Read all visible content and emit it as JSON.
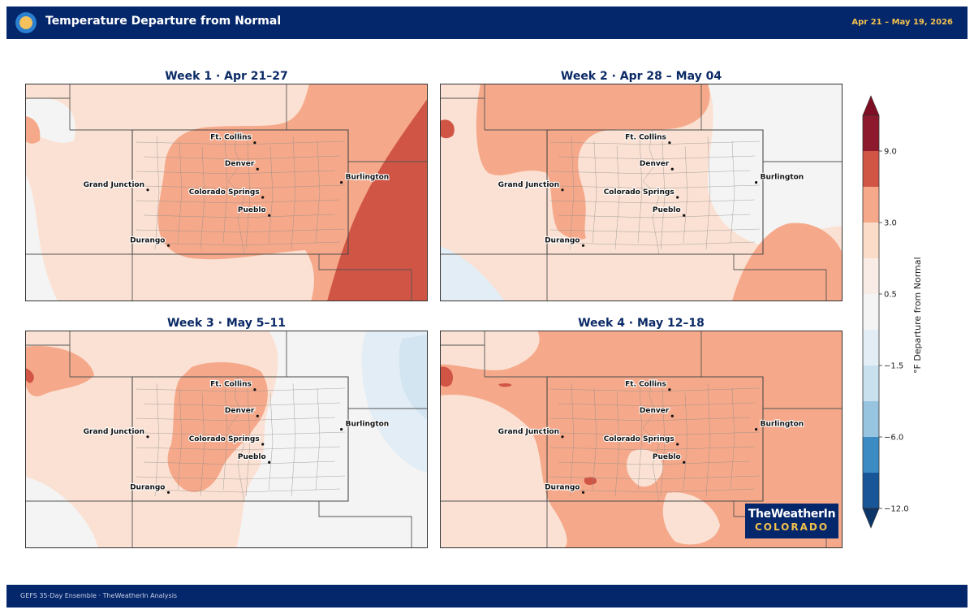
{
  "header": {
    "title": "Temperature Departure from Normal",
    "dates": "Apr 21 – May 19, 2026"
  },
  "panels": [
    {
      "title": "Week 1  ·  Apr 21–27",
      "pattern": "warm-east"
    },
    {
      "title": "Week 2  ·  Apr 28 – May 04",
      "pattern": "mild"
    },
    {
      "title": "Week 3  ·  May 5–11",
      "pattern": "cool-east"
    },
    {
      "title": "Week 4  ·  May 12–18",
      "pattern": "broad-warm"
    }
  ],
  "cities": [
    {
      "name": "Ft. Collins",
      "lon": -105.08,
      "lat": 40.59
    },
    {
      "name": "Denver",
      "lon": -104.99,
      "lat": 39.74
    },
    {
      "name": "Burlington",
      "lon": -102.27,
      "lat": 39.31
    },
    {
      "name": "Grand Junction",
      "lon": -108.55,
      "lat": 39.07
    },
    {
      "name": "Colorado Springs",
      "lon": -104.82,
      "lat": 38.83
    },
    {
      "name": "Pueblo",
      "lon": -104.61,
      "lat": 38.25
    },
    {
      "name": "Durango",
      "lon": -107.88,
      "lat": 37.28
    }
  ],
  "colorbar": {
    "title": "°F Departure from Normal",
    "tick_labels": [
      "9.0",
      "3.0",
      "0.5",
      "−1.5",
      "−6.0",
      "−12.0"
    ],
    "colors_top_to_bottom": [
      "#8d1a2c",
      "#d05545",
      "#f5a98a",
      "#fbdcc9",
      "#f9ece7",
      "#f4f4f4",
      "#e3edf5",
      "#c9e1ef",
      "#97c5df",
      "#3d8bc3",
      "#195698"
    ]
  },
  "colors": {
    "navy": "#04266a",
    "gold": "#f2c14e",
    "neutral": "#f4f4f4",
    "light_warm": "#fbe1d3",
    "warm": "#f5a98a",
    "hot": "#d05545",
    "cool": "#e2edf5",
    "cooler": "#d2e5f1"
  },
  "brand": {
    "top": "TheWeatherIn",
    "bottom": "COLORADO"
  },
  "footer": {
    "text": "GEFS 35-Day Ensemble  ·  TheWeatherIn Analysis"
  }
}
